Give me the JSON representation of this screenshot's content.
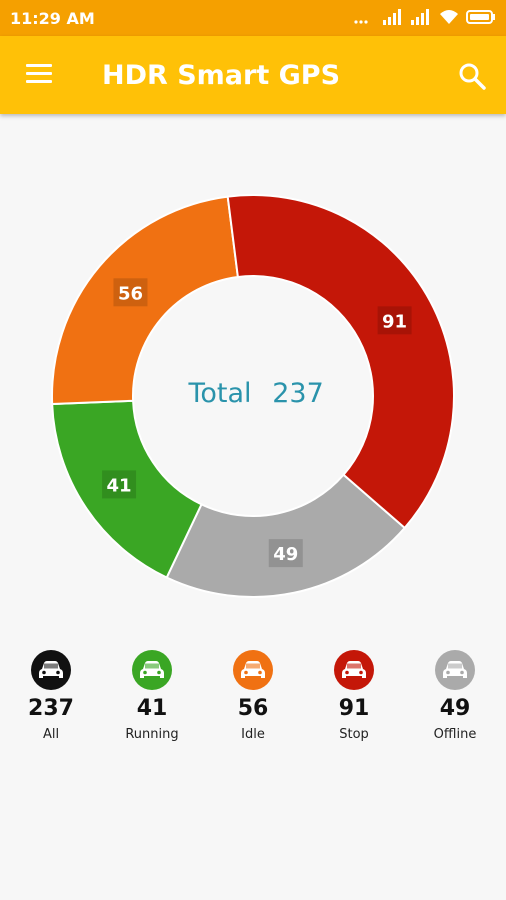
{
  "status_bar": {
    "time": "11:29 AM"
  },
  "app_bar": {
    "title": "HDR Smart GPS",
    "menu_icon": "menu-icon",
    "search_icon": "search-icon"
  },
  "chart_data": {
    "type": "pie",
    "center_text": "Total",
    "total": "237",
    "categories": [
      "Offline",
      "Running",
      "Idle",
      "Stop"
    ],
    "values": [
      49,
      41,
      56,
      91
    ],
    "labels": [
      "49",
      "41",
      "56",
      "91"
    ],
    "colors": [
      "#aaaaaa",
      "#3aa624",
      "#f07112",
      "#c41708"
    ]
  },
  "legend": [
    {
      "count": "237",
      "label": "All",
      "color": "#111111"
    },
    {
      "count": "41",
      "label": "Running",
      "color": "#3aa624"
    },
    {
      "count": "56",
      "label": "Idle",
      "color": "#f07112"
    },
    {
      "count": "91",
      "label": "Stop",
      "color": "#c41708"
    },
    {
      "count": "49",
      "label": "Offline",
      "color": "#aaaaaa"
    }
  ]
}
